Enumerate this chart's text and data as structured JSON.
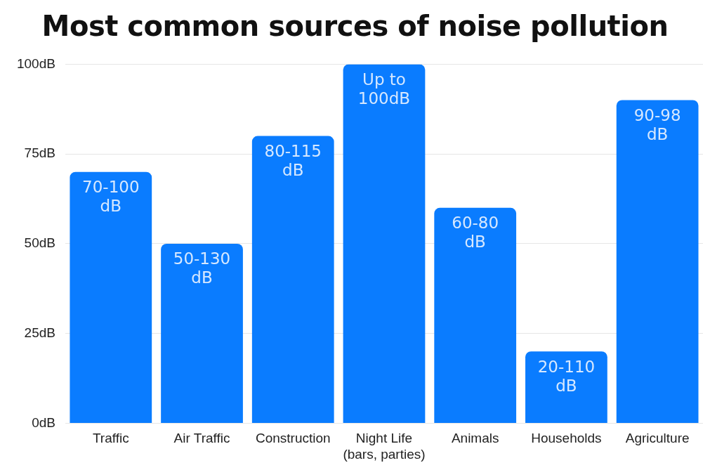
{
  "chart_data": {
    "type": "bar",
    "title": "Most common sources of noise pollution",
    "categories": [
      "Traffic",
      "Air Traffic",
      "Construction",
      "Night Life (bars, parties)",
      "Animals",
      "Households",
      "Agriculture"
    ],
    "values": [
      70,
      50,
      80,
      100,
      60,
      20,
      90
    ],
    "value_labels": [
      "70-100 dB",
      "50-130 dB",
      "80-115 dB",
      "Up to 100dB",
      "60-80 dB",
      "20-110 dB",
      "90-98 dB"
    ],
    "color": "#0a7cff",
    "ylim": [
      0,
      100
    ],
    "yticks": [
      {
        "value": 0,
        "label": "0dB"
      },
      {
        "value": 25,
        "label": "25dB"
      },
      {
        "value": 50,
        "label": "50dB"
      },
      {
        "value": 75,
        "label": "75dB"
      },
      {
        "value": 100,
        "label": "100dB"
      }
    ],
    "grid": "y",
    "legend": false
  }
}
